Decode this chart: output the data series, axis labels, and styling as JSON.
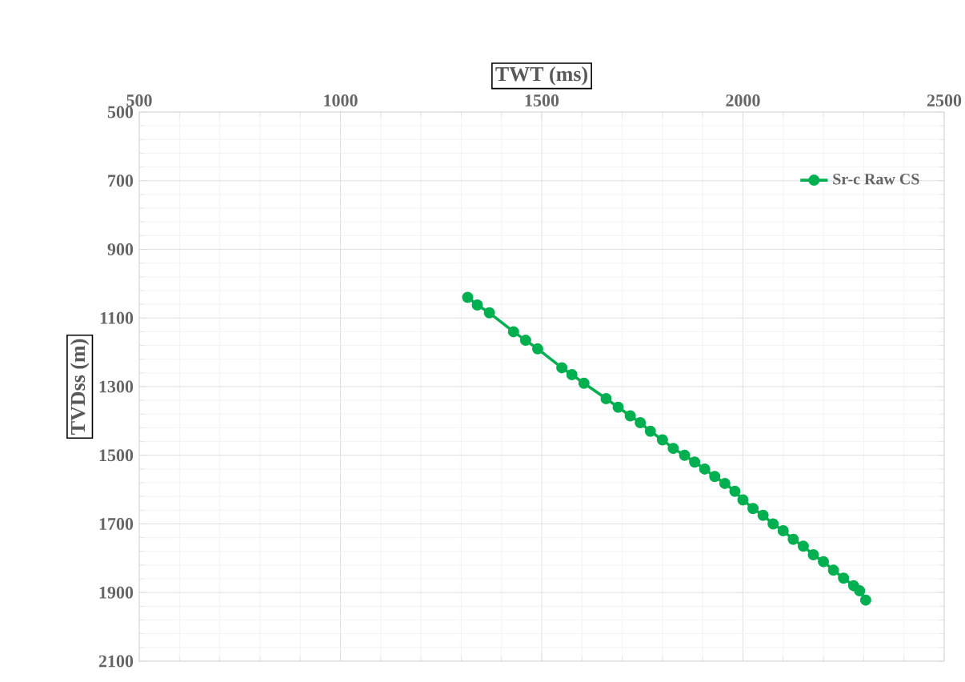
{
  "chart_data": {
    "type": "line",
    "xlabel": "TWT  (ms)",
    "ylabel": "TVDss (m)",
    "xlim": [
      500,
      2500
    ],
    "xticks": [
      500,
      1000,
      1500,
      2000,
      2500
    ],
    "ylim": [
      2100,
      500
    ],
    "yticks": [
      500,
      700,
      900,
      1100,
      1300,
      1500,
      1700,
      1900,
      2100
    ],
    "grid": true,
    "legend": "top right",
    "marker": "circle",
    "line_style": "solid",
    "series": [
      {
        "name": "Sr-c Raw CS",
        "color": "#00b050",
        "x": [
          1316,
          1340,
          1370,
          1430,
          1460,
          1490,
          1550,
          1575,
          1605,
          1660,
          1690,
          1720,
          1745,
          1770,
          1800,
          1827,
          1855,
          1880,
          1905,
          1930,
          1955,
          1980,
          2000,
          2025,
          2050,
          2075,
          2100,
          2125,
          2150,
          2175,
          2200,
          2225,
          2250,
          2275,
          2290,
          2305
        ],
        "values": [
          1040,
          1062,
          1085,
          1140,
          1165,
          1190,
          1245,
          1265,
          1290,
          1335,
          1360,
          1385,
          1405,
          1430,
          1455,
          1480,
          1500,
          1520,
          1540,
          1562,
          1582,
          1605,
          1630,
          1655,
          1675,
          1700,
          1720,
          1745,
          1765,
          1790,
          1810,
          1835,
          1858,
          1880,
          1895,
          1922
        ]
      }
    ]
  }
}
